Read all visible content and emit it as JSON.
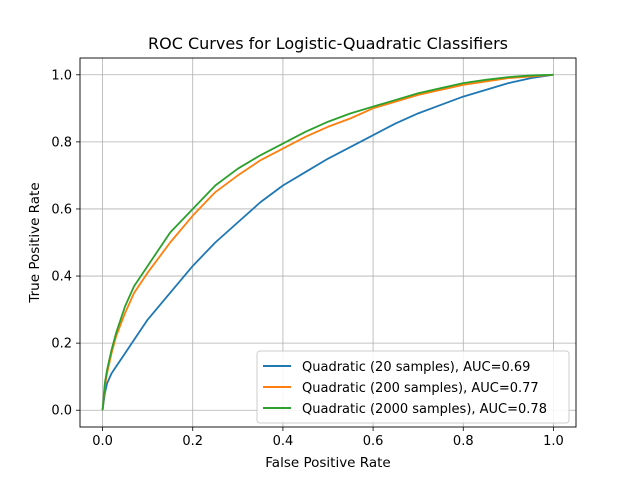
{
  "chart_data": {
    "type": "line",
    "title": "ROC Curves for Logistic-Quadratic Classifiers",
    "xlabel": "False Positive Rate",
    "ylabel": "True Positive Rate",
    "xlim": [
      -0.05,
      1.05
    ],
    "ylim": [
      -0.05,
      1.05
    ],
    "grid": true,
    "legend_position": "lower-right",
    "xticks": [
      0.0,
      0.2,
      0.4,
      0.6,
      0.8,
      1.0
    ],
    "xtick_labels": [
      "0.0",
      "0.2",
      "0.4",
      "0.6",
      "0.8",
      "1.0"
    ],
    "yticks": [
      0.0,
      0.2,
      0.4,
      0.6,
      0.8,
      1.0
    ],
    "ytick_labels": [
      "0.0",
      "0.2",
      "0.4",
      "0.6",
      "0.8",
      "1.0"
    ],
    "series": [
      {
        "name": "Quadratic (20 samples), AUC=0.69",
        "color": "#1f77b4",
        "x": [
          0.0,
          0.005,
          0.01,
          0.02,
          0.03,
          0.05,
          0.07,
          0.1,
          0.15,
          0.2,
          0.25,
          0.3,
          0.35,
          0.4,
          0.45,
          0.5,
          0.55,
          0.6,
          0.65,
          0.7,
          0.75,
          0.8,
          0.85,
          0.9,
          0.95,
          1.0
        ],
        "y": [
          0.0,
          0.05,
          0.08,
          0.11,
          0.13,
          0.17,
          0.21,
          0.27,
          0.35,
          0.43,
          0.5,
          0.56,
          0.62,
          0.67,
          0.71,
          0.75,
          0.785,
          0.82,
          0.855,
          0.885,
          0.91,
          0.935,
          0.955,
          0.975,
          0.99,
          1.0
        ]
      },
      {
        "name": "Quadratic (200 samples), AUC=0.77",
        "color": "#ff7f0e",
        "x": [
          0.0,
          0.005,
          0.01,
          0.02,
          0.03,
          0.05,
          0.07,
          0.1,
          0.15,
          0.2,
          0.25,
          0.3,
          0.35,
          0.4,
          0.45,
          0.5,
          0.55,
          0.6,
          0.65,
          0.7,
          0.75,
          0.8,
          0.85,
          0.9,
          0.95,
          1.0
        ],
        "y": [
          0.0,
          0.07,
          0.11,
          0.17,
          0.22,
          0.29,
          0.35,
          0.41,
          0.5,
          0.58,
          0.65,
          0.7,
          0.745,
          0.78,
          0.815,
          0.845,
          0.87,
          0.9,
          0.92,
          0.94,
          0.955,
          0.97,
          0.98,
          0.99,
          0.995,
          1.0
        ]
      },
      {
        "name": "Quadratic (2000 samples), AUC=0.78",
        "color": "#2ca02c",
        "x": [
          0.0,
          0.005,
          0.01,
          0.02,
          0.03,
          0.05,
          0.07,
          0.1,
          0.15,
          0.2,
          0.25,
          0.3,
          0.35,
          0.4,
          0.45,
          0.5,
          0.55,
          0.6,
          0.65,
          0.7,
          0.75,
          0.8,
          0.85,
          0.9,
          0.95,
          1.0
        ],
        "y": [
          0.0,
          0.08,
          0.12,
          0.18,
          0.23,
          0.31,
          0.37,
          0.43,
          0.53,
          0.6,
          0.67,
          0.72,
          0.76,
          0.795,
          0.83,
          0.86,
          0.885,
          0.905,
          0.925,
          0.945,
          0.96,
          0.975,
          0.985,
          0.993,
          0.998,
          1.0
        ]
      }
    ]
  }
}
